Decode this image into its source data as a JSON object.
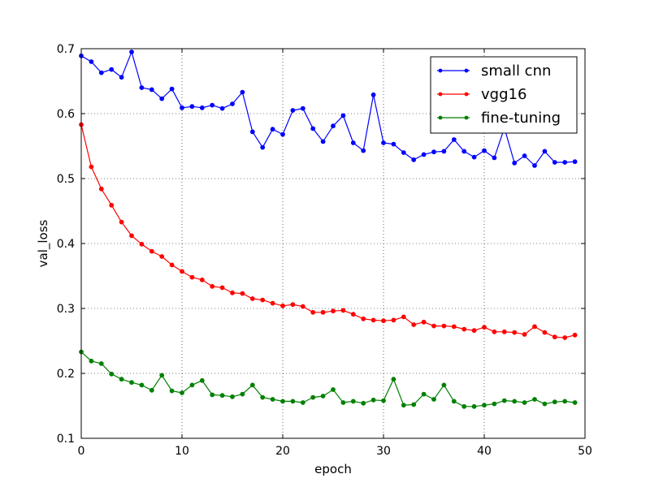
{
  "chart_data": {
    "type": "line",
    "title": "",
    "xlabel": "epoch",
    "ylabel": "val_loss",
    "xlim": [
      0,
      50
    ],
    "ylim": [
      0.1,
      0.7
    ],
    "xticks": [
      "0",
      "10",
      "20",
      "30",
      "40",
      "50"
    ],
    "yticks": [
      "0.1",
      "0.2",
      "0.3",
      "0.4",
      "0.5",
      "0.6",
      "0.7"
    ],
    "grid": true,
    "legend_position": "top-right",
    "x": [
      0,
      1,
      2,
      3,
      4,
      5,
      6,
      7,
      8,
      9,
      10,
      11,
      12,
      13,
      14,
      15,
      16,
      17,
      18,
      19,
      20,
      21,
      22,
      23,
      24,
      25,
      26,
      27,
      28,
      29,
      30,
      31,
      32,
      33,
      34,
      35,
      36,
      37,
      38,
      39,
      40,
      41,
      42,
      43,
      44,
      45,
      46,
      47,
      48,
      49
    ],
    "series": [
      {
        "name": "small cnn",
        "color": "#0000ff",
        "values": [
          0.689,
          0.68,
          0.663,
          0.668,
          0.656,
          0.695,
          0.64,
          0.637,
          0.623,
          0.638,
          0.609,
          0.611,
          0.609,
          0.613,
          0.608,
          0.615,
          0.633,
          0.572,
          0.548,
          0.576,
          0.568,
          0.605,
          0.608,
          0.577,
          0.557,
          0.581,
          0.597,
          0.555,
          0.543,
          0.629,
          0.555,
          0.553,
          0.54,
          0.529,
          0.537,
          0.541,
          0.542,
          0.56,
          0.542,
          0.533,
          0.543,
          0.532,
          0.578,
          0.524,
          0.535,
          0.52,
          0.542,
          0.525,
          0.525,
          0.526
        ]
      },
      {
        "name": "vgg16",
        "color": "#ff0000",
        "values": [
          0.583,
          0.518,
          0.484,
          0.459,
          0.433,
          0.412,
          0.399,
          0.388,
          0.38,
          0.367,
          0.357,
          0.348,
          0.344,
          0.334,
          0.332,
          0.324,
          0.323,
          0.315,
          0.313,
          0.308,
          0.304,
          0.306,
          0.303,
          0.294,
          0.294,
          0.296,
          0.297,
          0.291,
          0.284,
          0.282,
          0.281,
          0.282,
          0.287,
          0.275,
          0.279,
          0.273,
          0.273,
          0.272,
          0.268,
          0.266,
          0.271,
          0.264,
          0.264,
          0.263,
          0.26,
          0.272,
          0.263,
          0.256,
          0.255,
          0.259
        ]
      },
      {
        "name": "fine-tuning",
        "color": "#008000",
        "values": [
          0.233,
          0.219,
          0.215,
          0.199,
          0.191,
          0.186,
          0.182,
          0.174,
          0.197,
          0.173,
          0.17,
          0.182,
          0.189,
          0.167,
          0.166,
          0.164,
          0.168,
          0.182,
          0.163,
          0.16,
          0.157,
          0.157,
          0.155,
          0.163,
          0.165,
          0.175,
          0.155,
          0.157,
          0.154,
          0.159,
          0.158,
          0.191,
          0.151,
          0.152,
          0.168,
          0.16,
          0.182,
          0.157,
          0.149,
          0.149,
          0.151,
          0.153,
          0.158,
          0.157,
          0.155,
          0.16,
          0.153,
          0.156,
          0.157,
          0.155
        ]
      }
    ]
  }
}
